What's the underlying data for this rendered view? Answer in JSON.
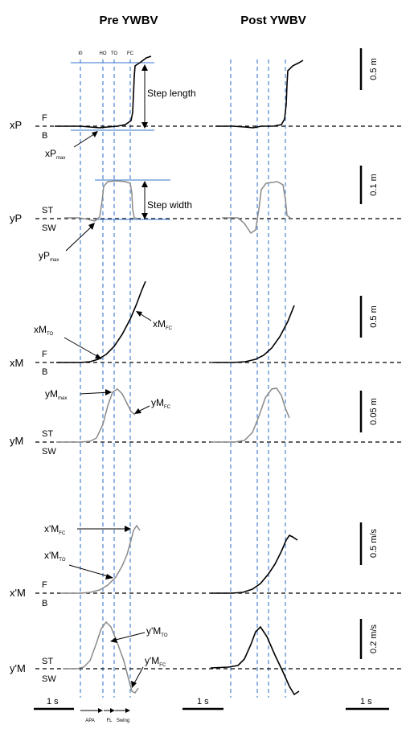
{
  "titles": {
    "pre": "Pre YWBV",
    "post": "Post YWBV"
  },
  "events": {
    "t0": "t0",
    "ho": "HO",
    "to": "TO",
    "fc": "FC"
  },
  "rows": {
    "xP": {
      "label": "xP",
      "upper": "F",
      "lower": "B",
      "scale": "0.5 m"
    },
    "yP": {
      "label": "yP",
      "upper": "ST",
      "lower": "SW",
      "scale": "0.1 m"
    },
    "xM": {
      "label": "xM",
      "upper": "F",
      "lower": "B",
      "scale": "0.5 m"
    },
    "yM": {
      "label": "yM",
      "upper": "ST",
      "lower": "SW",
      "scale": "0.05 m"
    },
    "xdM": {
      "label": "x'M",
      "upper": "F",
      "lower": "B",
      "scale": "0.5 m/s"
    },
    "ydM": {
      "label": "y'M",
      "upper": "ST",
      "lower": "SW",
      "scale": "0.2 m/s"
    }
  },
  "annotations": {
    "step_length": "Step length",
    "step_width": "Step width",
    "xP_max": {
      "main": "xP",
      "sub": "max"
    },
    "yP_max": {
      "main": "yP",
      "sub": "max"
    },
    "xM_TO": {
      "main": "xM",
      "sub": "TO"
    },
    "xM_FC": {
      "main": "xM",
      "sub": "FC"
    },
    "yM_max": {
      "main": "yM",
      "sub": "max"
    },
    "yM_FC": {
      "main": "yM",
      "sub": "FC"
    },
    "xdM_FC": {
      "main": "x'M",
      "sub": "FC"
    },
    "xdM_TO": {
      "main": "x'M",
      "sub": "TO"
    },
    "ydM_TO": {
      "main": "y'M",
      "sub": "TO"
    },
    "ydM_FC": {
      "main": "y'M",
      "sub": "FC"
    }
  },
  "time_scale": "1 s",
  "phases": {
    "apa": "APA",
    "fl": "FL",
    "swing": "Swing"
  }
}
